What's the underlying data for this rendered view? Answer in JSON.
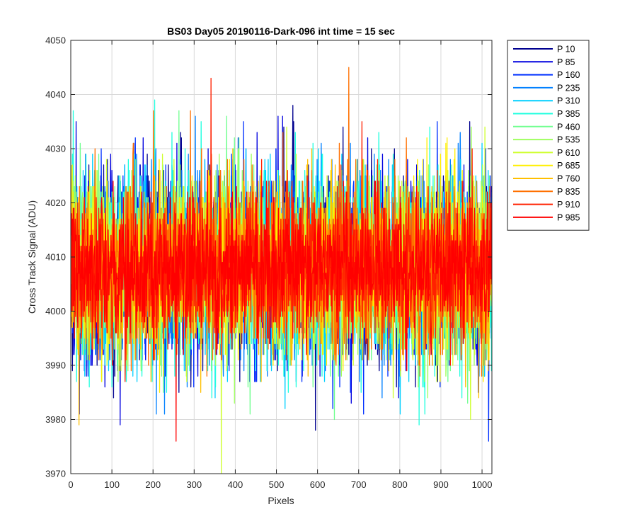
{
  "chart_data": {
    "type": "line",
    "title": "BS03 Day05 20190116-Dark-096 int time = 15 sec",
    "xlabel": "Pixels",
    "ylabel": "Cross Track Signal (ADU)",
    "xlim": [
      0,
      1024
    ],
    "ylim": [
      3970,
      4050
    ],
    "xticks": [
      0,
      100,
      200,
      300,
      400,
      500,
      600,
      700,
      800,
      900,
      1000
    ],
    "yticks": [
      3970,
      3980,
      3990,
      4000,
      4010,
      4020,
      4030,
      4040,
      4050
    ],
    "grid": true,
    "legend_position": "outside-right",
    "series": [
      {
        "name": "P 10",
        "color": "#00008f",
        "mean": 4008,
        "std": 9.5,
        "seed": 11
      },
      {
        "name": "P 85",
        "color": "#0000df",
        "mean": 4008,
        "std": 9.5,
        "seed": 22
      },
      {
        "name": "P 160",
        "color": "#0030ff",
        "mean": 4008,
        "std": 9.5,
        "seed": 33
      },
      {
        "name": "P 235",
        "color": "#0080ff",
        "mean": 4008,
        "std": 9.5,
        "seed": 44
      },
      {
        "name": "P 310",
        "color": "#00cfff",
        "mean": 4008,
        "std": 9.5,
        "seed": 55
      },
      {
        "name": "P 385",
        "color": "#20ffdf",
        "mean": 4008,
        "std": 9.5,
        "seed": 66
      },
      {
        "name": "P 460",
        "color": "#70ff8f",
        "mean": 4008,
        "std": 9.0,
        "seed": 77
      },
      {
        "name": "P 535",
        "color": "#9fff60",
        "mean": 4008,
        "std": 9.0,
        "seed": 88
      },
      {
        "name": "P 610",
        "color": "#cfff30",
        "mean": 4008,
        "std": 9.0,
        "seed": 99
      },
      {
        "name": "P 685",
        "color": "#ffef00",
        "mean": 4008,
        "std": 8.5,
        "seed": 110
      },
      {
        "name": "P 760",
        "color": "#ffbf00",
        "mean": 4008,
        "std": 8.5,
        "seed": 121
      },
      {
        "name": "P 835",
        "color": "#ff7000",
        "mean": 4008,
        "std": 8.5,
        "seed": 132
      },
      {
        "name": "P 910",
        "color": "#ff2000",
        "mean": 4008,
        "std": 7.5,
        "seed": 143
      },
      {
        "name": "P 985",
        "color": "#ff0000",
        "mean": 4008,
        "std": 7.0,
        "seed": 154
      }
    ],
    "points_per_series": 1024,
    "notable_extremes": [
      {
        "x": 365,
        "y": 3970,
        "series": "P 610"
      },
      {
        "x": 675,
        "y": 4045,
        "series": "P 835"
      },
      {
        "x": 340,
        "y": 4043,
        "series": "P 910"
      },
      {
        "x": 255,
        "y": 3976,
        "series": "P 985"
      },
      {
        "x": 1015,
        "y": 3976,
        "series": "P 160"
      }
    ]
  }
}
